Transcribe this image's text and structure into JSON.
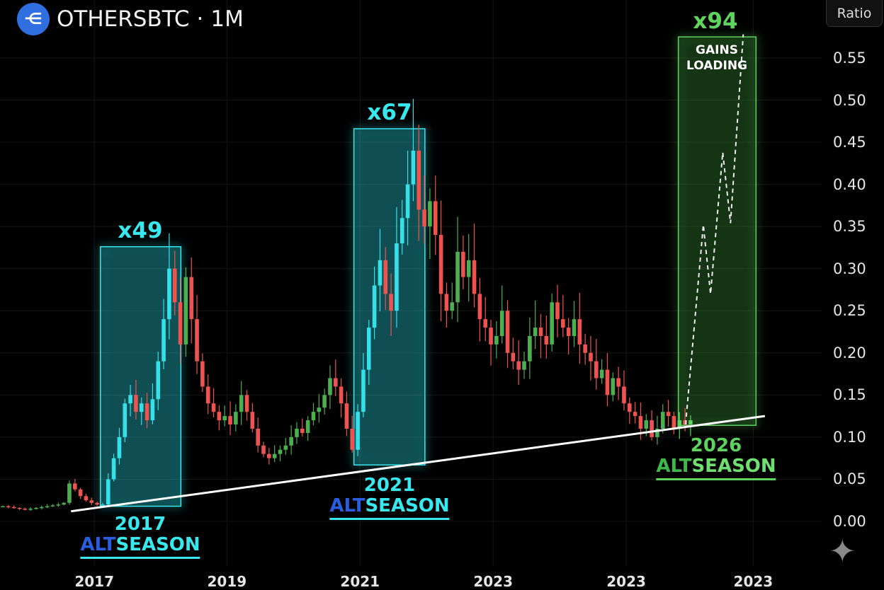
{
  "header": {
    "symbol": "OTHERSBTC",
    "separator": "·",
    "interval": "1M",
    "scale_button": "Ratio"
  },
  "colors": {
    "up": "#4caf50",
    "down": "#ef5350",
    "up_altseason": "#35e0e8",
    "cyan": "#38e8ee",
    "blue": "#2a5de0",
    "green": "#5ed35e",
    "trendline": "#ffffff"
  },
  "chart_data": {
    "type": "candlestick",
    "title": "OTHERSBTC · 1M",
    "ylabel": "Ratio",
    "ylim": [
      -0.04,
      0.62
    ],
    "y_ticks": [
      "0.00",
      "0.05",
      "0.10",
      "0.15",
      "0.20",
      "0.25",
      "0.30",
      "0.35",
      "0.40",
      "0.45",
      "0.50",
      "0.55"
    ],
    "x_ticks": [
      {
        "label": "2017",
        "month_index": 16.5
      },
      {
        "label": "2019",
        "month_index": 40.4
      },
      {
        "label": "2021",
        "month_index": 64.4
      },
      {
        "label": "2023",
        "month_index": 88.4
      },
      {
        "label": "2023",
        "month_index": 112.4
      },
      {
        "label": "2023",
        "month_index": 135.3
      }
    ],
    "grid": true,
    "close": [
      0.018,
      0.017,
      0.016,
      0.015,
      0.014,
      0.015,
      0.016,
      0.017,
      0.018,
      0.019,
      0.02,
      0.022,
      0.045,
      0.038,
      0.03,
      0.025,
      0.022,
      0.02,
      0.02,
      0.05,
      0.075,
      0.1,
      0.14,
      0.15,
      0.13,
      0.14,
      0.12,
      0.145,
      0.19,
      0.24,
      0.3,
      0.26,
      0.21,
      0.29,
      0.24,
      0.19,
      0.16,
      0.14,
      0.13,
      0.12,
      0.125,
      0.115,
      0.13,
      0.15,
      0.13,
      0.11,
      0.09,
      0.08,
      0.075,
      0.08,
      0.085,
      0.09,
      0.1,
      0.11,
      0.105,
      0.12,
      0.13,
      0.135,
      0.15,
      0.17,
      0.16,
      0.14,
      0.11,
      0.085,
      0.13,
      0.18,
      0.23,
      0.28,
      0.31,
      0.27,
      0.25,
      0.33,
      0.36,
      0.4,
      0.44,
      0.37,
      0.35,
      0.38,
      0.34,
      0.27,
      0.25,
      0.26,
      0.32,
      0.29,
      0.31,
      0.27,
      0.24,
      0.23,
      0.21,
      0.22,
      0.25,
      0.2,
      0.19,
      0.18,
      0.19,
      0.22,
      0.23,
      0.22,
      0.21,
      0.26,
      0.24,
      0.23,
      0.22,
      0.24,
      0.21,
      0.2,
      0.19,
      0.17,
      0.18,
      0.15,
      0.17,
      0.16,
      0.14,
      0.13,
      0.125,
      0.11,
      0.12,
      0.1,
      0.11,
      0.13,
      0.125,
      0.11,
      0.12,
      0.115,
      0.12
    ],
    "annotations": [
      {
        "id": "2017",
        "multiplier": "x49",
        "year": "2017",
        "alt": "ALT",
        "season": "SEASON",
        "box": {
          "from_index": 17.6,
          "to_index": 32.1,
          "low": 0.018,
          "high": 0.326
        }
      },
      {
        "id": "2021",
        "multiplier": "x67",
        "year": "2021",
        "alt": "ALT",
        "season": "SEASON",
        "box": {
          "from_index": 63.3,
          "to_index": 76.1,
          "low": 0.067,
          "high": 0.466
        }
      },
      {
        "id": "2026",
        "multiplier": "x94",
        "year": "2026",
        "alt": "ALT",
        "season": "SEASON",
        "box": {
          "from_index": 121.8,
          "to_index": 135.8,
          "low": 0.114,
          "high": 0.575
        },
        "note_line1": "GAINS",
        "note_line2": "LOADING"
      }
    ],
    "trendline": [
      {
        "index": 12.3,
        "value": 0.012
      },
      {
        "index": 137.4,
        "value": 0.125
      }
    ],
    "projection": [
      {
        "index": 123.1,
        "value": 0.115
      },
      {
        "index": 126.3,
        "value": 0.352
      },
      {
        "index": 127.6,
        "value": 0.27
      },
      {
        "index": 129.8,
        "value": 0.438
      },
      {
        "index": 131.2,
        "value": 0.354
      },
      {
        "index": 133.5,
        "value": 0.578
      }
    ]
  }
}
